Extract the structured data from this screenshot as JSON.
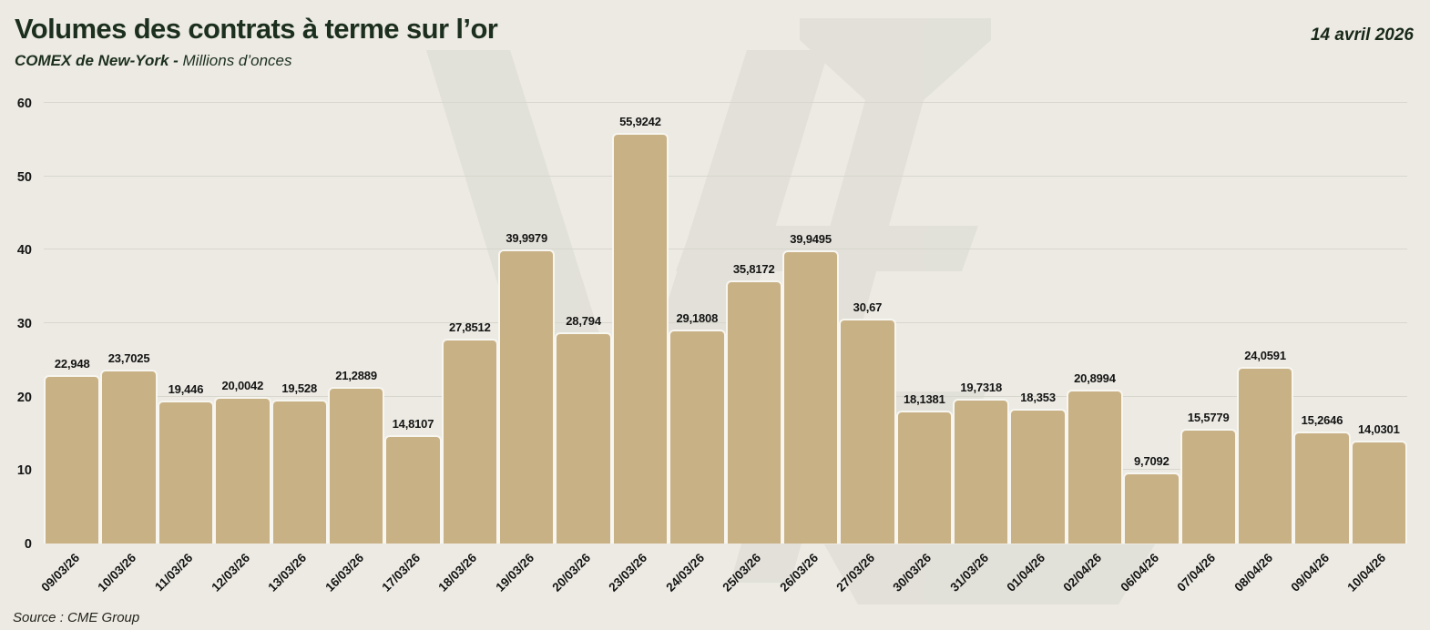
{
  "header": {
    "title": "Volumes des contrats à terme sur l’or",
    "subtitle_bold": "COMEX de New-York -",
    "subtitle_regular": " Millions d’onces",
    "date": "14 avril 2026"
  },
  "footer": {
    "source": "Source : CME Group"
  },
  "chart_data": {
    "type": "bar",
    "title": "Volumes des contrats à terme sur l’or",
    "subtitle": "COMEX de New-York - Millions d’onces",
    "xlabel": "",
    "ylabel": "Millions d’onces",
    "ylim": [
      0,
      60
    ],
    "yticks": [
      0,
      10,
      20,
      30,
      40,
      50,
      60
    ],
    "grid": true,
    "legend": false,
    "categories": [
      "09/03/26",
      "10/03/26",
      "11/03/26",
      "12/03/26",
      "13/03/26",
      "16/03/26",
      "17/03/26",
      "18/03/26",
      "19/03/26",
      "20/03/26",
      "23/03/26",
      "24/03/26",
      "25/03/26",
      "26/03/26",
      "27/03/26",
      "30/03/26",
      "31/03/26",
      "01/04/26",
      "02/04/26",
      "06/04/26",
      "07/04/26",
      "08/04/26",
      "09/04/26",
      "10/04/26"
    ],
    "values": [
      22.948,
      23.7025,
      19.446,
      20.0042,
      19.528,
      21.2889,
      14.8107,
      27.8512,
      39.9979,
      28.794,
      55.9242,
      29.1808,
      35.8172,
      39.9495,
      30.67,
      18.1381,
      19.7318,
      18.353,
      20.8994,
      9.7092,
      15.5779,
      24.0591,
      15.2646,
      14.0301
    ],
    "value_labels": [
      "22,948",
      "23,7025",
      "19,446",
      "20,0042",
      "19,528",
      "21,2889",
      "14,8107",
      "27,8512",
      "39,9979",
      "28,794",
      "55,9242",
      "29,1808",
      "35,8172",
      "39,9495",
      "30,67",
      "18,1381",
      "19,7318",
      "18,353",
      "20,8994",
      "9,7092",
      "15,5779",
      "24,0591",
      "15,2646",
      "14,0301"
    ],
    "colors": {
      "background": "#ECEAE3",
      "bar_fill": "#C9B186",
      "bar_border": "#F7F6F0",
      "gridline": "#D8D7CE",
      "title_text": "#1C2F1E",
      "label_text": "#141414",
      "watermark": "#DBDAD3"
    }
  }
}
